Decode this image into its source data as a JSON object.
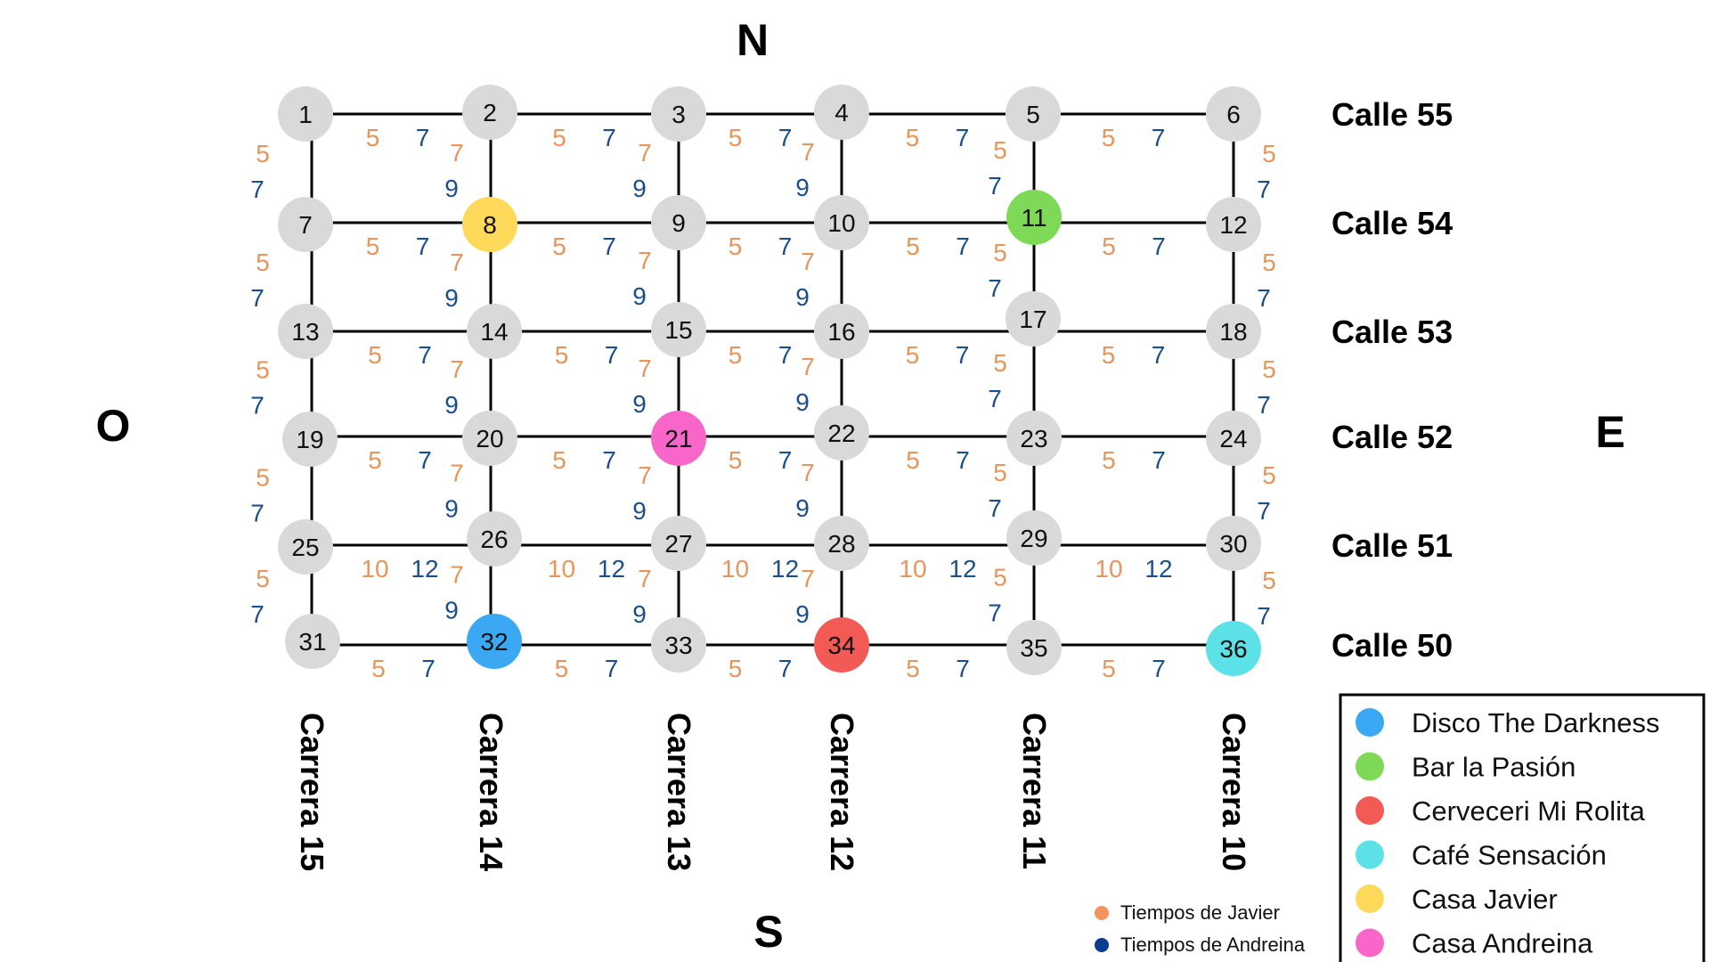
{
  "compass": {
    "north": "N",
    "south": "S",
    "west": "O",
    "east": "E"
  },
  "calles": [
    "Calle 55",
    "Calle 54",
    "Calle 53",
    "Calle 52",
    "Calle 51",
    "Calle 50"
  ],
  "carreras": [
    "Carrera 15",
    "Carrera 14",
    "Carrera 13",
    "Carrera 12",
    "Carrera 11",
    "Carrera 10"
  ],
  "nodes": [
    {
      "id": "1"
    },
    {
      "id": "2"
    },
    {
      "id": "3"
    },
    {
      "id": "4"
    },
    {
      "id": "5"
    },
    {
      "id": "6"
    },
    {
      "id": "7"
    },
    {
      "id": "8",
      "place": "Casa Javier"
    },
    {
      "id": "9"
    },
    {
      "id": "10"
    },
    {
      "id": "11",
      "place": "Bar la Pasión"
    },
    {
      "id": "12"
    },
    {
      "id": "13"
    },
    {
      "id": "14"
    },
    {
      "id": "15"
    },
    {
      "id": "16"
    },
    {
      "id": "17"
    },
    {
      "id": "18"
    },
    {
      "id": "19"
    },
    {
      "id": "20"
    },
    {
      "id": "21",
      "place": "Casa Andreina"
    },
    {
      "id": "22"
    },
    {
      "id": "23"
    },
    {
      "id": "24"
    },
    {
      "id": "25"
    },
    {
      "id": "26"
    },
    {
      "id": "27"
    },
    {
      "id": "28"
    },
    {
      "id": "29"
    },
    {
      "id": "30"
    },
    {
      "id": "31"
    },
    {
      "id": "32",
      "place": "Disco The Darkness"
    },
    {
      "id": "33"
    },
    {
      "id": "34",
      "place": "Cerveceri Mi Rolita"
    },
    {
      "id": "35"
    },
    {
      "id": "36",
      "place": "Café Sensación"
    }
  ],
  "horizontal_times": [
    {
      "javier": [
        "5",
        "5",
        "5",
        "5",
        "5"
      ],
      "andreina": [
        "7",
        "7",
        "7",
        "7",
        "7"
      ]
    },
    {
      "javier": [
        "5",
        "5",
        "5",
        "5",
        "5"
      ],
      "andreina": [
        "7",
        "7",
        "7",
        "7",
        "7"
      ]
    },
    {
      "javier": [
        "5",
        "5",
        "5",
        "5",
        "5"
      ],
      "andreina": [
        "7",
        "7",
        "7",
        "7",
        "7"
      ]
    },
    {
      "javier": [
        "5",
        "5",
        "5",
        "5",
        "5"
      ],
      "andreina": [
        "7",
        "7",
        "7",
        "7",
        "7"
      ]
    },
    {
      "javier": [
        "10",
        "10",
        "10",
        "10",
        "10"
      ],
      "andreina": [
        "12",
        "12",
        "12",
        "12",
        "12"
      ]
    },
    {
      "javier": [
        "5",
        "5",
        "5",
        "5",
        "5"
      ],
      "andreina": [
        "7",
        "7",
        "7",
        "7",
        "7"
      ]
    }
  ],
  "vertical_times": [
    {
      "javier": [
        "5",
        "7",
        "7",
        "7",
        "5",
        "5"
      ],
      "andreina": [
        "7",
        "9",
        "9",
        "9",
        "7",
        "7"
      ]
    },
    {
      "javier": [
        "5",
        "7",
        "7",
        "7",
        "5",
        "5"
      ],
      "andreina": [
        "7",
        "9",
        "9",
        "9",
        "7",
        "7"
      ]
    },
    {
      "javier": [
        "5",
        "7",
        "7",
        "7",
        "5",
        "5"
      ],
      "andreina": [
        "7",
        "9",
        "9",
        "9",
        "7",
        "7"
      ]
    },
    {
      "javier": [
        "5",
        "7",
        "7",
        "7",
        "5",
        "5"
      ],
      "andreina": [
        "7",
        "9",
        "9",
        "9",
        "7",
        "7"
      ]
    },
    {
      "javier": [
        "5",
        "7",
        "7",
        "7",
        "5",
        "5"
      ],
      "andreina": [
        "7",
        "9",
        "9",
        "9",
        "7",
        "7"
      ]
    }
  ],
  "legend": {
    "items": [
      {
        "label": "Disco The Darkness",
        "color": "#3aa8f2"
      },
      {
        "label": "Bar la Pasión",
        "color": "#7ed957"
      },
      {
        "label": "Cerveceri Mi Rolita",
        "color": "#f25a56"
      },
      {
        "label": "Café Sensación",
        "color": "#5ce1e6"
      },
      {
        "label": "Casa Javier",
        "color": "#ffd95a"
      },
      {
        "label": "Casa Andreina",
        "color": "#f766c8"
      }
    ]
  },
  "times_legend": [
    {
      "label": "Tiempos de Javier",
      "color": "#f5935a"
    },
    {
      "label": "Tiempos de Andreina",
      "color": "#0a3d8f"
    }
  ],
  "colors": {
    "node_default": "#d9d9d9",
    "javier": "#e8955a",
    "andreina": "#1b4f8c",
    "line": "#000000"
  }
}
